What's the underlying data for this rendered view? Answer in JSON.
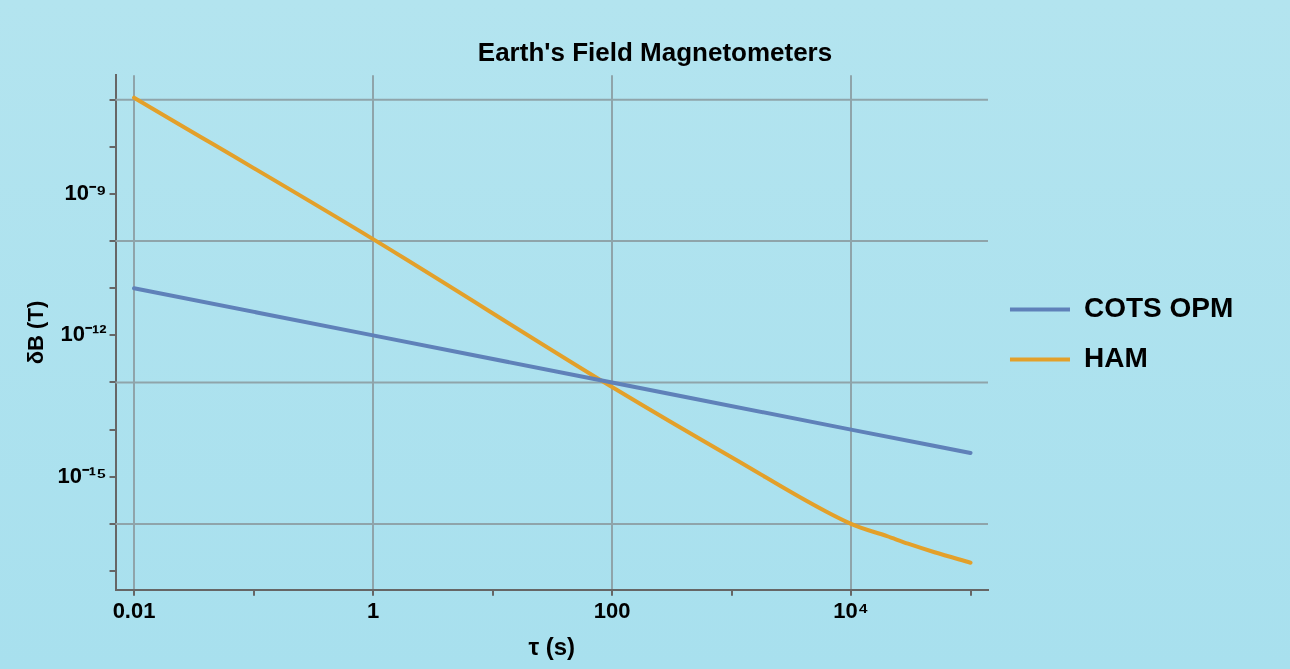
{
  "chart_data": {
    "type": "line",
    "title": "Earth's Field Magnetometers",
    "xlabel": "τ (s)",
    "ylabel": "δB (T)",
    "log": "xy",
    "grid": "x",
    "legend": "right",
    "marker": "none",
    "line_style": "solid",
    "xlim": [
      0.007,
      140000
    ],
    "ylim": [
      4e-18,
      3.3e-07
    ],
    "xticks": [
      0.01,
      {
        "value": 0.1,
        "label": null
      },
      1,
      {
        "value": 10,
        "label": null
      },
      100,
      {
        "value": 1000,
        "label": null
      },
      {
        "value": 10000,
        "label": "10⁴"
      },
      {
        "value": 100000,
        "label": null
      }
    ],
    "yticks": [
      {
        "value": 1e-17,
        "label": null
      },
      {
        "value": 1e-16,
        "label": null
      },
      {
        "value": 1e-15,
        "label": "10⁻¹⁵"
      },
      {
        "value": 1e-14,
        "label": null
      },
      {
        "value": 1e-13,
        "label": null
      },
      {
        "value": 1e-12,
        "label": "10⁻¹²"
      },
      {
        "value": 1e-11,
        "label": null
      },
      {
        "value": 1e-10,
        "label": null
      },
      {
        "value": 1e-09,
        "label": "10⁻⁹"
      },
      {
        "value": 1e-08,
        "label": null
      },
      {
        "value": 1e-07,
        "label": null
      }
    ],
    "ref_lines": [
      {
        "axis": "y",
        "value": 1e-16,
        "color": "#8fa4aa"
      },
      {
        "axis": "y",
        "value": 1e-13,
        "color": "#8fa4aa"
      },
      {
        "axis": "y",
        "value": 1e-10,
        "color": "#8fa4aa"
      },
      {
        "axis": "y",
        "value": 1e-07,
        "color": "#8fa4aa"
      }
    ],
    "series": [
      {
        "name": "COTS OPM",
        "color": "#5f81b9",
        "x": [
          0.01,
          1,
          100,
          10000,
          100000
        ],
        "values": [
          1e-11,
          1e-12,
          1e-13,
          1e-14,
          3.2e-15
        ]
      },
      {
        "name": "HAM",
        "color": "#e3a02a",
        "x": [
          0.01,
          1,
          100,
          1000,
          10000,
          20000,
          30000,
          50000,
          100000
        ],
        "values": [
          1.1e-07,
          1.1e-10,
          8e-14,
          2.6e-15,
          1e-16,
          5.5e-17,
          3.8e-17,
          2.5e-17,
          1.5e-17
        ]
      }
    ]
  }
}
